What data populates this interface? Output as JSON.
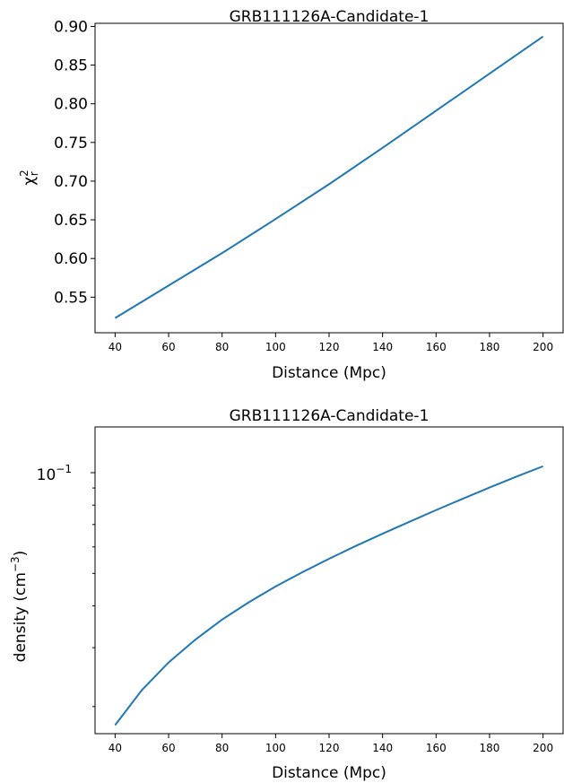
{
  "chart_data": [
    {
      "type": "line",
      "title": "GRB111126A-Candidate-1",
      "xlabel": "Distance (Mpc)",
      "ylabel": {
        "base": "χ",
        "sup": "2",
        "sub": "r"
      },
      "xlim": [
        32.5,
        207.5
      ],
      "ylim": [
        0.504,
        0.904
      ],
      "xticks": [
        40,
        60,
        80,
        100,
        120,
        140,
        160,
        180,
        200
      ],
      "yticks": [
        "0.55",
        "0.60",
        "0.65",
        "0.70",
        "0.75",
        "0.80",
        "0.85",
        "0.90"
      ],
      "y_log": false,
      "grid": false,
      "series": [
        {
          "color": "#1f77b4",
          "x": [
            40,
            60,
            80,
            100,
            120,
            140,
            160,
            180,
            200
          ],
          "y": [
            0.523,
            0.565,
            0.607,
            0.651,
            0.696,
            0.743,
            0.791,
            0.839,
            0.887
          ]
        }
      ]
    },
    {
      "type": "line",
      "title": "GRB111126A-Candidate-1",
      "xlabel": "Distance (Mpc)",
      "ylabel": {
        "base": "density (cm",
        "sup": "−3",
        "tail": ")"
      },
      "xlim": [
        32.5,
        207.5
      ],
      "ylim": [
        0.0166,
        0.137
      ],
      "xticks": [
        40,
        60,
        80,
        100,
        120,
        140,
        160,
        180,
        200
      ],
      "yticks_log": [
        {
          "value": 0.1,
          "base": "10",
          "sup": "−1"
        }
      ],
      "y_log": true,
      "grid": false,
      "series": [
        {
          "color": "#1f77b4",
          "x": [
            40,
            50,
            60,
            70,
            80,
            90,
            100,
            110,
            120,
            130,
            140,
            150,
            160,
            170,
            180,
            190,
            200
          ],
          "y": [
            0.0176,
            0.0224,
            0.0271,
            0.0317,
            0.0364,
            0.041,
            0.0457,
            0.0504,
            0.0553,
            0.0604,
            0.0657,
            0.0713,
            0.0773,
            0.0836,
            0.0903,
            0.0973,
            0.1045
          ]
        }
      ]
    }
  ]
}
